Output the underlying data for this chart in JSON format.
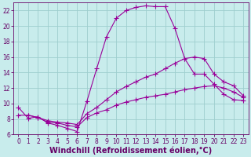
{
  "xlabel": "Windchill (Refroidissement éolien,°C)",
  "background_color": "#c8ecec",
  "grid_color": "#9ecece",
  "line_color": "#990099",
  "xlim": [
    -0.5,
    23.5
  ],
  "ylim": [
    6,
    23
  ],
  "xticks": [
    0,
    1,
    2,
    3,
    4,
    5,
    6,
    7,
    8,
    9,
    10,
    11,
    12,
    13,
    14,
    15,
    16,
    17,
    18,
    19,
    20,
    21,
    22,
    23
  ],
  "yticks": [
    6,
    8,
    10,
    12,
    14,
    16,
    18,
    20,
    22
  ],
  "line1_x": [
    0,
    1,
    2,
    3,
    4,
    5,
    6,
    7,
    8,
    9,
    10,
    11,
    12,
    13,
    14,
    15,
    16,
    17,
    18,
    19,
    20,
    21,
    22,
    23
  ],
  "line1_y": [
    9.5,
    8.1,
    8.3,
    7.5,
    7.2,
    6.8,
    6.4,
    10.3,
    14.5,
    18.6,
    21.0,
    22.0,
    22.4,
    22.6,
    22.5,
    22.5,
    19.7,
    15.8,
    13.8,
    13.8,
    12.5,
    11.2,
    10.5,
    10.4
  ],
  "line2_x": [
    0,
    1,
    2,
    3,
    4,
    5,
    6,
    7,
    8,
    9,
    10,
    11,
    12,
    13,
    14,
    15,
    16,
    17,
    18,
    19,
    20,
    21,
    22,
    23
  ],
  "line2_y": [
    8.5,
    8.5,
    8.2,
    7.8,
    7.6,
    7.5,
    7.3,
    8.7,
    9.5,
    10.5,
    11.5,
    12.2,
    12.8,
    13.4,
    13.8,
    14.5,
    15.2,
    15.8,
    16.0,
    15.8,
    13.8,
    12.8,
    12.3,
    11.0
  ],
  "line3_x": [
    1,
    2,
    3,
    4,
    5,
    6,
    7,
    8,
    9,
    10,
    11,
    12,
    13,
    14,
    15,
    16,
    17,
    18,
    19,
    20,
    21,
    22,
    23
  ],
  "line3_y": [
    8.5,
    8.2,
    7.6,
    7.5,
    7.2,
    7.0,
    8.2,
    8.8,
    9.2,
    9.8,
    10.2,
    10.5,
    10.8,
    11.0,
    11.2,
    11.5,
    11.8,
    12.0,
    12.2,
    12.3,
    12.0,
    11.5,
    10.8
  ],
  "tick_fontsize": 5.5,
  "label_fontsize": 7.0
}
